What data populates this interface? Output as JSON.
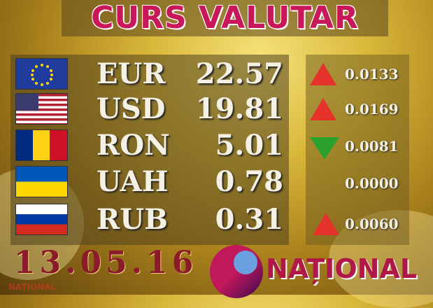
{
  "title": "CURS VALUTAR",
  "rates": [
    {
      "code": "EUR",
      "value": "22.57",
      "flag": "eu",
      "change": "0.0133",
      "trend": "up"
    },
    {
      "code": "USD",
      "value": "19.81",
      "flag": "us",
      "change": "0.0169",
      "trend": "up"
    },
    {
      "code": "RON",
      "value": "5.01",
      "flag": "ro",
      "change": "0.0081",
      "trend": "down"
    },
    {
      "code": "UAH",
      "value": "0.78",
      "flag": "ua",
      "change": "0.0000",
      "trend": "none"
    },
    {
      "code": "RUB",
      "value": "0.31",
      "flag": "ru",
      "change": "0.0060",
      "trend": "up"
    }
  ],
  "date": "13.05.16",
  "brand": "NAȚIONAL",
  "watermark": "NAȚIONAL",
  "colors": {
    "up": "#e5322b",
    "down": "#2ca02c",
    "title": "#c8185a"
  }
}
